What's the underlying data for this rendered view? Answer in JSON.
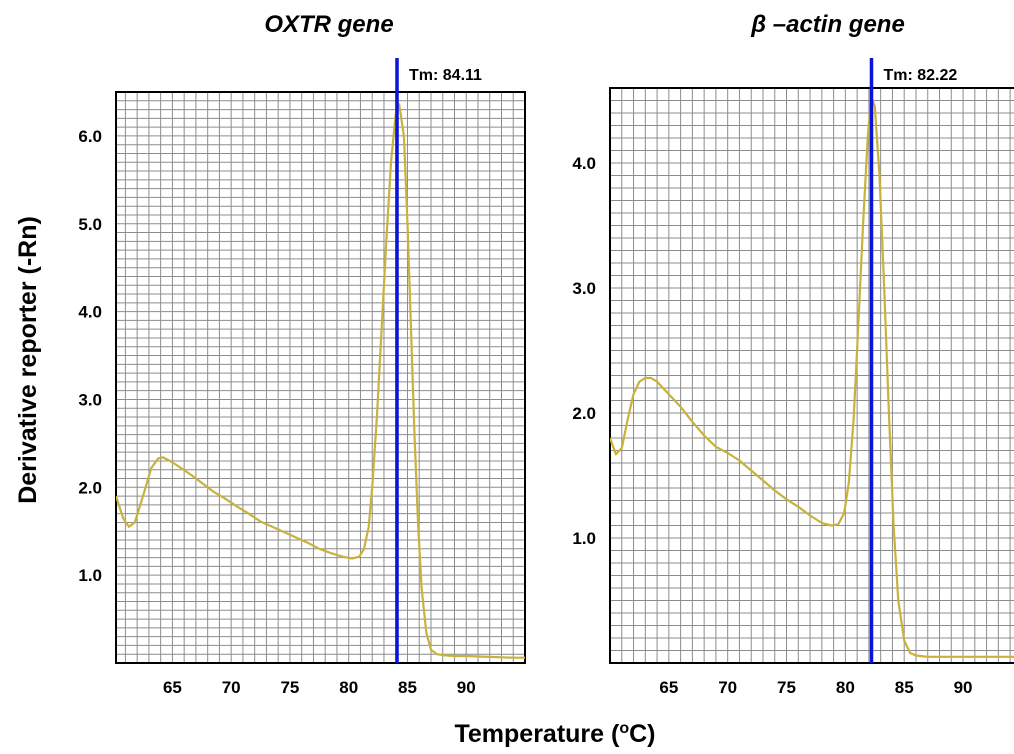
{
  "figure": {
    "xlabel_main": "Temperature (",
    "xlabel_sup": "o",
    "xlabel_end": "C)",
    "ylabel": "Derivative reporter (-Rn)"
  },
  "colors": {
    "curve": "#c8b23c",
    "tm_line": "#0a14d8",
    "grid": "#8c8c8c",
    "frame": "#000000"
  },
  "chart_data": [
    {
      "type": "line",
      "title": "OXTR gene",
      "xlabel": "Temperature (oC)",
      "ylabel": "Derivative reporter (-Rn)",
      "xlim": [
        60.2,
        95.0
      ],
      "ylim": [
        0.0,
        6.5
      ],
      "x_ticks": [
        65,
        70,
        75,
        80,
        85,
        90
      ],
      "x_tick_labels": [
        "65",
        "70",
        "75",
        "80",
        "85",
        "90"
      ],
      "y_ticks": [
        1.0,
        2.0,
        3.0,
        4.0,
        5.0,
        6.0
      ],
      "y_tick_labels": [
        "1.0",
        "2.0",
        "3.0",
        "4.0",
        "5.0",
        "6.0"
      ],
      "grid": true,
      "tm_label": "Tm: 84.11",
      "tm_value": 84.11,
      "series": [
        {
          "x": [
            60.2,
            60.8,
            61.3,
            61.8,
            62.5,
            63.2,
            63.8,
            64.2,
            64.8,
            65.5,
            66.5,
            67.5,
            68.5,
            69.5,
            70.5,
            71.5,
            72.5,
            73.5,
            74.5,
            75.5,
            76.5,
            77.5,
            78.5,
            79.5,
            80.3,
            80.9,
            81.3,
            81.7,
            82.0,
            82.4,
            82.8,
            83.2,
            83.6,
            84.0,
            84.3,
            84.7,
            85.0,
            85.3,
            85.6,
            85.9,
            86.2,
            86.6,
            87.0,
            87.5,
            88.0,
            89.0,
            90.0,
            92.0,
            94.0,
            95.0
          ],
          "y": [
            1.9,
            1.65,
            1.55,
            1.6,
            1.9,
            2.22,
            2.33,
            2.34,
            2.3,
            2.24,
            2.15,
            2.05,
            1.95,
            1.87,
            1.78,
            1.7,
            1.61,
            1.55,
            1.49,
            1.43,
            1.37,
            1.3,
            1.25,
            1.21,
            1.19,
            1.21,
            1.3,
            1.55,
            2.0,
            2.8,
            3.8,
            4.8,
            5.7,
            6.25,
            6.36,
            6.0,
            5.0,
            3.8,
            2.6,
            1.6,
            0.85,
            0.35,
            0.15,
            0.1,
            0.09,
            0.08,
            0.08,
            0.07,
            0.06,
            0.06
          ]
        }
      ]
    },
    {
      "type": "line",
      "title": "β –actin gene",
      "xlabel": "Temperature (oC)",
      "ylabel": "Derivative reporter (-Rn)",
      "xlim": [
        60.0,
        94.5
      ],
      "ylim": [
        0.0,
        4.6
      ],
      "x_ticks": [
        65,
        70,
        75,
        80,
        85,
        90
      ],
      "x_tick_labels": [
        "65",
        "70",
        "75",
        "80",
        "85",
        "90"
      ],
      "y_ticks": [
        1.0,
        2.0,
        3.0,
        4.0
      ],
      "y_tick_labels": [
        "1.0",
        "2.0",
        "3.0",
        "4.0"
      ],
      "grid": true,
      "tm_label": "Tm: 82.22",
      "tm_value": 82.22,
      "series": [
        {
          "x": [
            60.0,
            60.5,
            61.0,
            61.5,
            62.0,
            62.5,
            63.0,
            63.5,
            64.0,
            65.0,
            66.0,
            67.0,
            68.0,
            69.0,
            70.0,
            71.0,
            72.0,
            73.0,
            74.0,
            75.0,
            76.0,
            77.0,
            78.0,
            78.8,
            79.4,
            79.9,
            80.3,
            80.7,
            81.1,
            81.5,
            81.9,
            82.2,
            82.5,
            82.9,
            83.3,
            83.7,
            84.1,
            84.5,
            85.0,
            85.5,
            86.0,
            87.0,
            88.0,
            90.0,
            92.0,
            94.5
          ],
          "y": [
            1.8,
            1.67,
            1.72,
            1.95,
            2.15,
            2.25,
            2.28,
            2.28,
            2.25,
            2.15,
            2.05,
            1.93,
            1.82,
            1.73,
            1.68,
            1.62,
            1.54,
            1.46,
            1.38,
            1.31,
            1.25,
            1.18,
            1.12,
            1.1,
            1.11,
            1.2,
            1.45,
            1.95,
            2.7,
            3.5,
            4.2,
            4.53,
            4.45,
            3.9,
            3.0,
            2.0,
            1.1,
            0.5,
            0.18,
            0.08,
            0.06,
            0.05,
            0.05,
            0.05,
            0.05,
            0.05
          ]
        }
      ]
    }
  ]
}
